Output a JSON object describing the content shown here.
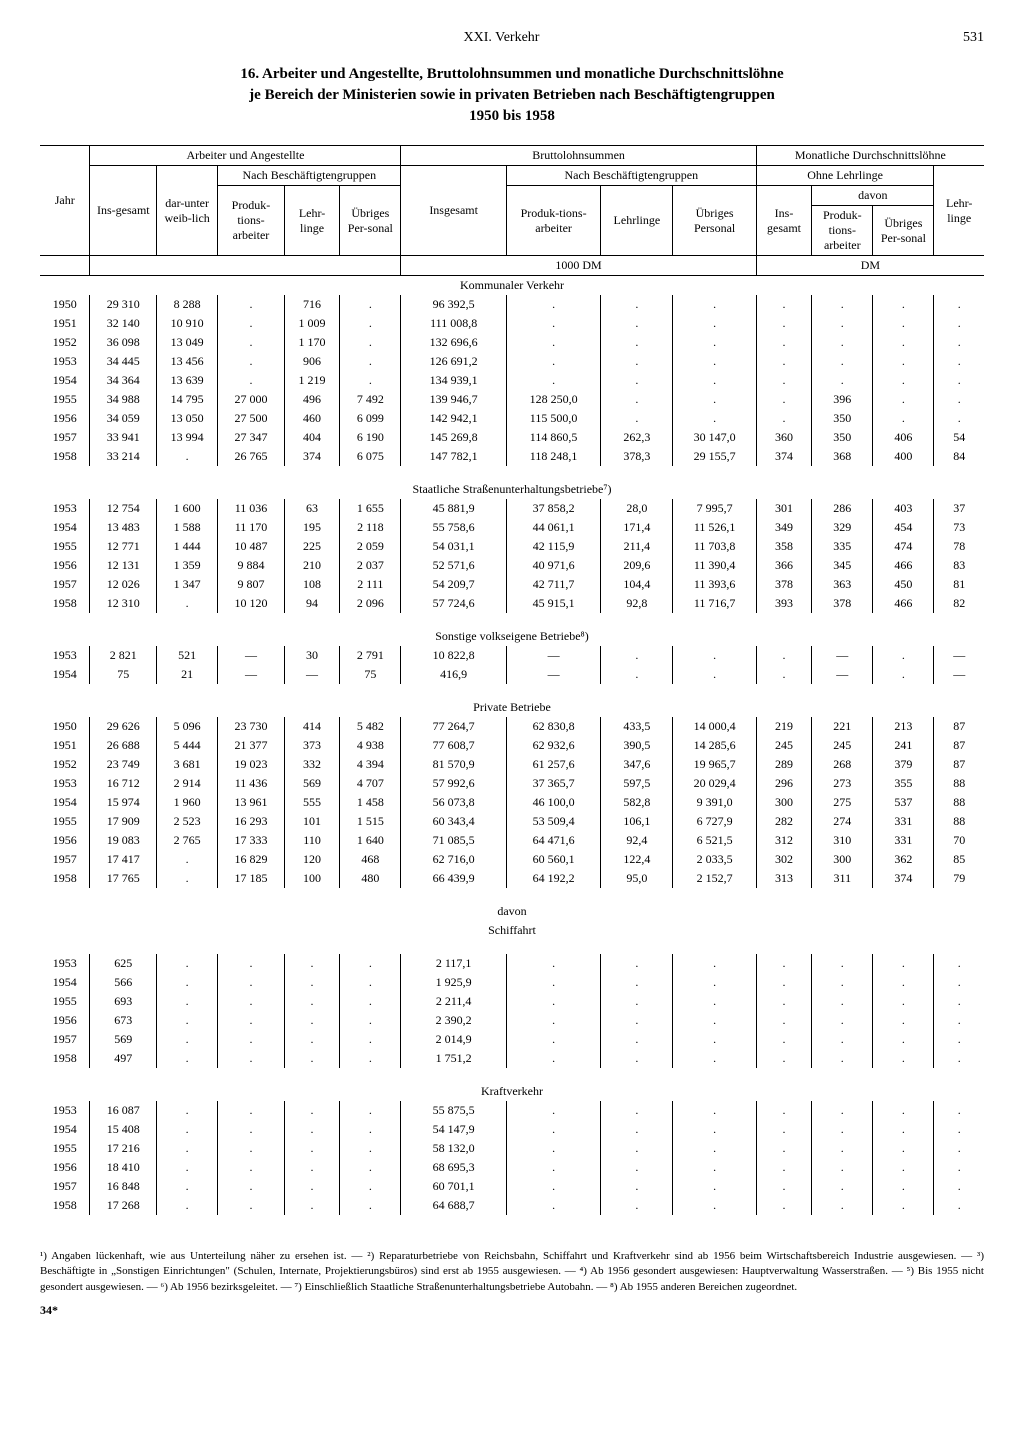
{
  "header": {
    "chapter": "XXI. Verkehr",
    "page": "531"
  },
  "title": "16. Arbeiter und Angestellte, Bruttolohnsummen und monatliche Durchschnittslöhne",
  "subtitle": "je Bereich der Ministerien sowie in privaten Betrieben nach Beschäftigtengruppen",
  "years": "1950 bis 1958",
  "th": {
    "g1": "Arbeiter und Angestellte",
    "g2": "Bruttolohnsummen",
    "g3": "Monatliche Durchschnittslöhne",
    "nach": "Nach Beschäftigtengruppen",
    "ohne": "Ohne Lehrlinge",
    "davon": "davon",
    "jahr": "Jahr",
    "insg": "Ins-gesamt",
    "dw": "dar-unter weib-lich",
    "pa": "Produk-tions-arbeiter",
    "lehr": "Lehr-linge",
    "up": "Übriges Per-sonal",
    "insg2": "Insgesamt",
    "lehr2": "Lehrlinge",
    "up2": "Übriges Personal",
    "u1000": "1000 DM",
    "udm": "DM"
  },
  "sections": [
    {
      "title": "Kommunaler Verkehr",
      "rows": [
        [
          "1950",
          "29 310",
          "8 288",
          ".",
          "716",
          ".",
          "96 392,5",
          ".",
          ".",
          ".",
          ".",
          ".",
          ".",
          "."
        ],
        [
          "1951",
          "32 140",
          "10 910",
          ".",
          "1 009",
          ".",
          "111 008,8",
          ".",
          ".",
          ".",
          ".",
          ".",
          ".",
          "."
        ],
        [
          "1952",
          "36 098",
          "13 049",
          ".",
          "1 170",
          ".",
          "132 696,6",
          ".",
          ".",
          ".",
          ".",
          ".",
          ".",
          "."
        ],
        [
          "1953",
          "34 445",
          "13 456",
          ".",
          "906",
          ".",
          "126 691,2",
          ".",
          ".",
          ".",
          ".",
          ".",
          ".",
          "."
        ],
        [
          "1954",
          "34 364",
          "13 639",
          ".",
          "1 219",
          ".",
          "134 939,1",
          ".",
          ".",
          ".",
          ".",
          ".",
          ".",
          "."
        ],
        [
          "1955",
          "34 988",
          "14 795",
          "27 000",
          "496",
          "7 492",
          "139 946,7",
          "128 250,0",
          ".",
          ".",
          ".",
          "396",
          ".",
          "."
        ],
        [
          "1956",
          "34 059",
          "13 050",
          "27 500",
          "460",
          "6 099",
          "142 942,1",
          "115 500,0",
          ".",
          ".",
          ".",
          "350",
          ".",
          "."
        ],
        [
          "1957",
          "33 941",
          "13 994",
          "27 347",
          "404",
          "6 190",
          "145 269,8",
          "114 860,5",
          "262,3",
          "30 147,0",
          "360",
          "350",
          "406",
          "54"
        ],
        [
          "1958",
          "33 214",
          ".",
          "26 765",
          "374",
          "6 075",
          "147 782,1",
          "118 248,1",
          "378,3",
          "29 155,7",
          "374",
          "368",
          "400",
          "84"
        ]
      ]
    },
    {
      "title": "Staatliche Straßenunterhaltungsbetriebe⁷)",
      "rows": [
        [
          "1953",
          "12 754",
          "1 600",
          "11 036",
          "63",
          "1 655",
          "45 881,9",
          "37 858,2",
          "28,0",
          "7 995,7",
          "301",
          "286",
          "403",
          "37"
        ],
        [
          "1954",
          "13 483",
          "1 588",
          "11 170",
          "195",
          "2 118",
          "55 758,6",
          "44 061,1",
          "171,4",
          "11 526,1",
          "349",
          "329",
          "454",
          "73"
        ],
        [
          "1955",
          "12 771",
          "1 444",
          "10 487",
          "225",
          "2 059",
          "54 031,1",
          "42 115,9",
          "211,4",
          "11 703,8",
          "358",
          "335",
          "474",
          "78"
        ],
        [
          "1956",
          "12 131",
          "1 359",
          "9 884",
          "210",
          "2 037",
          "52 571,6",
          "40 971,6",
          "209,6",
          "11 390,4",
          "366",
          "345",
          "466",
          "83"
        ],
        [
          "1957",
          "12 026",
          "1 347",
          "9 807",
          "108",
          "2 111",
          "54 209,7",
          "42 711,7",
          "104,4",
          "11 393,6",
          "378",
          "363",
          "450",
          "81"
        ],
        [
          "1958",
          "12 310",
          ".",
          "10 120",
          "94",
          "2 096",
          "57 724,6",
          "45 915,1",
          "92,8",
          "11 716,7",
          "393",
          "378",
          "466",
          "82"
        ]
      ]
    },
    {
      "title": "Sonstige volkseigene Betriebe⁸)",
      "rows": [
        [
          "1953",
          "2 821",
          "521",
          "—",
          "30",
          "2 791",
          "10 822,8",
          "—",
          ".",
          ".",
          ".",
          "—",
          ".",
          "—"
        ],
        [
          "1954",
          "75",
          "21",
          "—",
          "—",
          "75",
          "416,9",
          "—",
          ".",
          ".",
          ".",
          "—",
          ".",
          "—"
        ]
      ]
    },
    {
      "title": "Private Betriebe",
      "rows": [
        [
          "1950",
          "29 626",
          "5 096",
          "23 730",
          "414",
          "5 482",
          "77 264,7",
          "62 830,8",
          "433,5",
          "14 000,4",
          "219",
          "221",
          "213",
          "87"
        ],
        [
          "1951",
          "26 688",
          "5 444",
          "21 377",
          "373",
          "4 938",
          "77 608,7",
          "62 932,6",
          "390,5",
          "14 285,6",
          "245",
          "245",
          "241",
          "87"
        ],
        [
          "1952",
          "23 749",
          "3 681",
          "19 023",
          "332",
          "4 394",
          "81 570,9",
          "61 257,6",
          "347,6",
          "19 965,7",
          "289",
          "268",
          "379",
          "87"
        ],
        [
          "1953",
          "16 712",
          "2 914",
          "11 436",
          "569",
          "4 707",
          "57 992,6",
          "37 365,7",
          "597,5",
          "20 029,4",
          "296",
          "273",
          "355",
          "88"
        ],
        [
          "1954",
          "15 974",
          "1 960",
          "13 961",
          "555",
          "1 458",
          "56 073,8",
          "46 100,0",
          "582,8",
          "9 391,0",
          "300",
          "275",
          "537",
          "88"
        ],
        [
          "1955",
          "17 909",
          "2 523",
          "16 293",
          "101",
          "1 515",
          "60 343,4",
          "53 509,4",
          "106,1",
          "6 727,9",
          "282",
          "274",
          "331",
          "88"
        ],
        [
          "1956",
          "19 083",
          "2 765",
          "17 333",
          "110",
          "1 640",
          "71 085,5",
          "64 471,6",
          "92,4",
          "6 521,5",
          "312",
          "310",
          "331",
          "70"
        ],
        [
          "1957",
          "17 417",
          ".",
          "16 829",
          "120",
          "468",
          "62 716,0",
          "60 560,1",
          "122,4",
          "2 033,5",
          "302",
          "300",
          "362",
          "85"
        ],
        [
          "1958",
          "17 765",
          ".",
          "17 185",
          "100",
          "480",
          "66 439,9",
          "64 192,2",
          "95,0",
          "2 152,7",
          "313",
          "311",
          "374",
          "79"
        ]
      ]
    }
  ],
  "davon_label": "davon",
  "sub_sections": [
    {
      "title": "Schiffahrt",
      "rows": [
        [
          "1953",
          "625",
          ".",
          ".",
          ".",
          ".",
          "2 117,1",
          ".",
          ".",
          ".",
          ".",
          ".",
          ".",
          "."
        ],
        [
          "1954",
          "566",
          ".",
          ".",
          ".",
          ".",
          "1 925,9",
          ".",
          ".",
          ".",
          ".",
          ".",
          ".",
          "."
        ],
        [
          "1955",
          "693",
          ".",
          ".",
          ".",
          ".",
          "2 211,4",
          ".",
          ".",
          ".",
          ".",
          ".",
          ".",
          "."
        ],
        [
          "1956",
          "673",
          ".",
          ".",
          ".",
          ".",
          "2 390,2",
          ".",
          ".",
          ".",
          ".",
          ".",
          ".",
          "."
        ],
        [
          "1957",
          "569",
          ".",
          ".",
          ".",
          ".",
          "2 014,9",
          ".",
          ".",
          ".",
          ".",
          ".",
          ".",
          "."
        ],
        [
          "1958",
          "497",
          ".",
          ".",
          ".",
          ".",
          "1 751,2",
          ".",
          ".",
          ".",
          ".",
          ".",
          ".",
          "."
        ]
      ]
    },
    {
      "title": "Kraftverkehr",
      "rows": [
        [
          "1953",
          "16 087",
          ".",
          ".",
          ".",
          ".",
          "55 875,5",
          ".",
          ".",
          ".",
          ".",
          ".",
          ".",
          "."
        ],
        [
          "1954",
          "15 408",
          ".",
          ".",
          ".",
          ".",
          "54 147,9",
          ".",
          ".",
          ".",
          ".",
          ".",
          ".",
          "."
        ],
        [
          "1955",
          "17 216",
          ".",
          ".",
          ".",
          ".",
          "58 132,0",
          ".",
          ".",
          ".",
          ".",
          ".",
          ".",
          "."
        ],
        [
          "1956",
          "18 410",
          ".",
          ".",
          ".",
          ".",
          "68 695,3",
          ".",
          ".",
          ".",
          ".",
          ".",
          ".",
          "."
        ],
        [
          "1957",
          "16 848",
          ".",
          ".",
          ".",
          ".",
          "60 701,1",
          ".",
          ".",
          ".",
          ".",
          ".",
          ".",
          "."
        ],
        [
          "1958",
          "17 268",
          ".",
          ".",
          ".",
          ".",
          "64 688,7",
          ".",
          ".",
          ".",
          ".",
          ".",
          ".",
          "."
        ]
      ]
    }
  ],
  "footnotes": "¹) Angaben lückenhaft, wie aus Unterteilung näher zu ersehen ist. — ²) Reparaturbetriebe von Reichsbahn, Schiffahrt und Kraftverkehr sind ab 1956 beim Wirtschaftsbereich Industrie ausgewiesen. — ³) Beschäftigte in „Sonstigen Einrichtungen\" (Schulen, Internate, Projektierungsbüros) sind erst ab 1955 ausgewiesen. — ⁴) Ab 1956 gesondert ausgewiesen: Hauptverwaltung Wasserstraßen. — ⁵) Bis 1955 nicht gesondert ausgewiesen. — ⁶) Ab 1956 bezirksgeleitet. — ⁷) Einschließlich Staatliche Straßenunterhaltungsbetriebe Autobahn. — ⁸) Ab 1955 anderen Bereichen zugeordnet.",
  "page_mark": "34*"
}
